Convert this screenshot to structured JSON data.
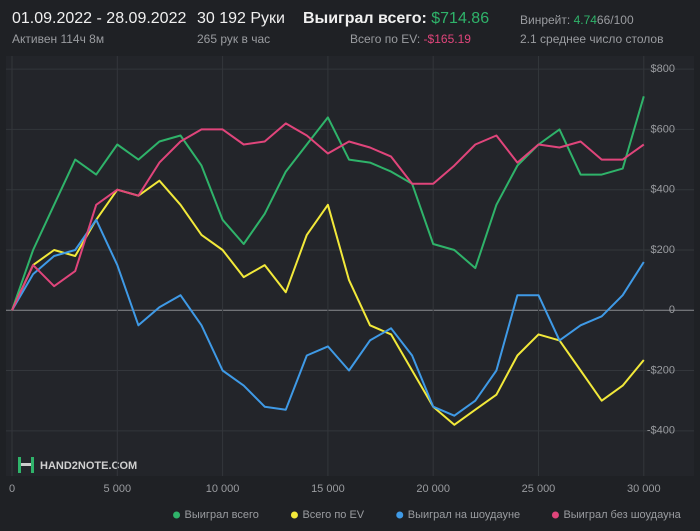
{
  "header": {
    "period": "01.09.2022 - 28.09.2022",
    "active": "Активен 114ч 8м",
    "hands": "30 192 Руки",
    "hands_per_hour": "265 рук в час",
    "won_label": "Выиграл всего:",
    "won_value": "$714.86",
    "ev_label": "Всего по EV:",
    "ev_value": "-$165.19",
    "winrate_label": "Винрейт:",
    "winrate_value": "4.74",
    "winrate_unit": "66/100",
    "tables": "2.1 среднее число столов"
  },
  "watermark": "HAND2NOTE.COM",
  "chart_data": {
    "type": "line",
    "x": [
      0,
      1000,
      2000,
      3000,
      4000,
      5000,
      6000,
      7000,
      8000,
      9000,
      10000,
      11000,
      12000,
      13000,
      14000,
      15000,
      16000,
      17000,
      18000,
      19000,
      20000,
      21000,
      22000,
      23000,
      24000,
      25000,
      26000,
      27000,
      28000,
      29000,
      30000
    ],
    "series": [
      {
        "name": "Выиграл всего",
        "color": "#2fb36a",
        "values": [
          0,
          200,
          350,
          500,
          450,
          550,
          500,
          560,
          580,
          480,
          300,
          220,
          320,
          460,
          550,
          640,
          500,
          490,
          460,
          420,
          220,
          200,
          140,
          350,
          480,
          550,
          600,
          450,
          450,
          470,
          710
        ]
      },
      {
        "name": "Всего по EV",
        "color": "#f2e93a",
        "values": [
          0,
          150,
          200,
          180,
          300,
          400,
          380,
          430,
          350,
          250,
          200,
          110,
          150,
          60,
          250,
          350,
          100,
          -50,
          -80,
          -200,
          -320,
          -380,
          -330,
          -280,
          -150,
          -80,
          -100,
          -200,
          -300,
          -250,
          -165
        ]
      },
      {
        "name": "Выиграл на шоудауне",
        "color": "#3f9ae6",
        "values": [
          0,
          120,
          180,
          200,
          300,
          150,
          -50,
          10,
          50,
          -50,
          -200,
          -250,
          -320,
          -330,
          -150,
          -120,
          -200,
          -100,
          -60,
          -150,
          -320,
          -350,
          -300,
          -200,
          50,
          50,
          -100,
          -50,
          -20,
          50,
          160
        ]
      },
      {
        "name": "Выиграл без шоудауна",
        "color": "#e0457b",
        "values": [
          0,
          150,
          80,
          130,
          350,
          400,
          380,
          490,
          560,
          600,
          600,
          550,
          560,
          620,
          580,
          520,
          560,
          540,
          510,
          420,
          420,
          480,
          550,
          580,
          490,
          550,
          540,
          560,
          500,
          500,
          550
        ]
      }
    ],
    "xlim": [
      0,
      30200
    ],
    "ylim": [
      -530,
      837
    ],
    "xticks": [
      0,
      {
        "value": 5000,
        "label": "5 000"
      },
      {
        "value": 10000,
        "label": "10 000"
      },
      {
        "value": 15000,
        "label": "15 000"
      },
      {
        "value": 20000,
        "label": "20 000"
      },
      {
        "value": 25000,
        "label": "25 000"
      },
      {
        "value": 30000,
        "label": "30 000"
      }
    ],
    "yticks": [
      {
        "value": -400,
        "label": "-$400"
      },
      {
        "value": -200,
        "label": "-$200"
      },
      0,
      {
        "value": 200,
        "label": "$200"
      },
      {
        "value": 400,
        "label": "$400"
      },
      {
        "value": 600,
        "label": "$600"
      },
      {
        "value": 800,
        "label": "$800"
      }
    ],
    "grid": true,
    "legend": "bottom"
  }
}
